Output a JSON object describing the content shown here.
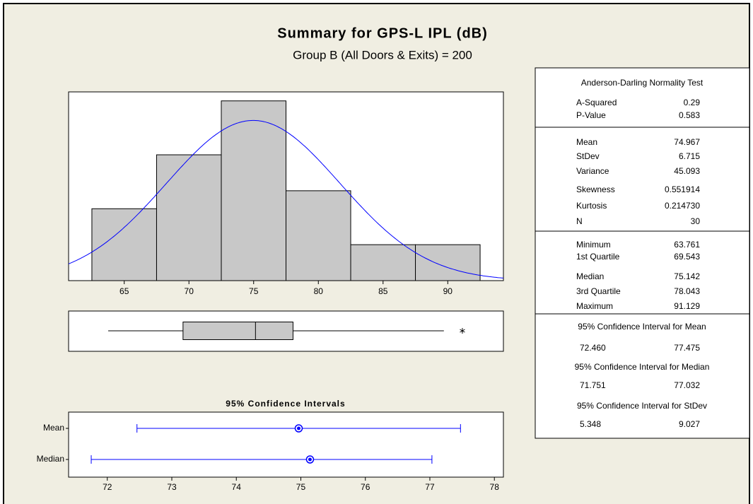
{
  "title": "Summary for GPS-L IPL (dB)",
  "subtitle": "Group B (All Doors & Exits) = 200",
  "chart_data": [
    {
      "type": "histogram",
      "bins": [
        62.5,
        67.5,
        72.5,
        77.5,
        82.5,
        87.5,
        92.5
      ],
      "values": [
        4,
        7,
        10,
        5,
        2,
        2
      ],
      "color": "#c8c8c8",
      "curve_color": "#0000ff",
      "xlim": [
        60.7,
        94.3
      ],
      "ylim": [
        0,
        10.5
      ],
      "xticks": [
        65,
        70,
        75,
        80,
        85,
        90
      ]
    },
    {
      "type": "box",
      "whisker_low": 63.761,
      "q1": 69.543,
      "median": 75.142,
      "q3": 78.043,
      "whisker_high": 89.7,
      "outliers": [
        91.129
      ],
      "color": "#c8c8c8",
      "xlim": [
        60.7,
        94.3
      ]
    },
    {
      "type": "interval",
      "title": "95% Confidence Intervals",
      "categories": [
        "Mean",
        "Median"
      ],
      "values": [
        74.967,
        75.142
      ],
      "low": [
        72.46,
        71.751
      ],
      "high": [
        77.475,
        77.032
      ],
      "color": "#0000ff",
      "xlim": [
        71.4,
        78.14
      ],
      "xticks": [
        72,
        73,
        74,
        75,
        76,
        77,
        78
      ]
    }
  ],
  "stats": {
    "normality_title": "Anderson-Darling Normality Test",
    "normality": [
      [
        "A-Squared",
        "0.29"
      ],
      [
        "P-Value",
        "0.583"
      ]
    ],
    "descriptive": [
      [
        "Mean",
        "74.967"
      ],
      [
        "StDev",
        "6.715"
      ],
      [
        "Variance",
        "45.093"
      ],
      [
        "Skewness",
        "0.551914"
      ],
      [
        "Kurtosis",
        "0.214730"
      ],
      [
        "N",
        "30"
      ]
    ],
    "quartiles": [
      [
        "Minimum",
        "63.761"
      ],
      [
        "1st Quartile",
        "69.543"
      ],
      [
        "Median",
        "75.142"
      ],
      [
        "3rd Quartile",
        "78.043"
      ],
      [
        "Maximum",
        "91.129"
      ]
    ],
    "ci": [
      {
        "title": "95% Confidence Interval for Mean",
        "low": "72.460",
        "high": "77.475"
      },
      {
        "title": "95% Confidence Interval for Median",
        "low": "71.751",
        "high": "77.032"
      },
      {
        "title": "95% Confidence Interval for StDev",
        "low": "5.348",
        "high": "9.027"
      }
    ]
  }
}
